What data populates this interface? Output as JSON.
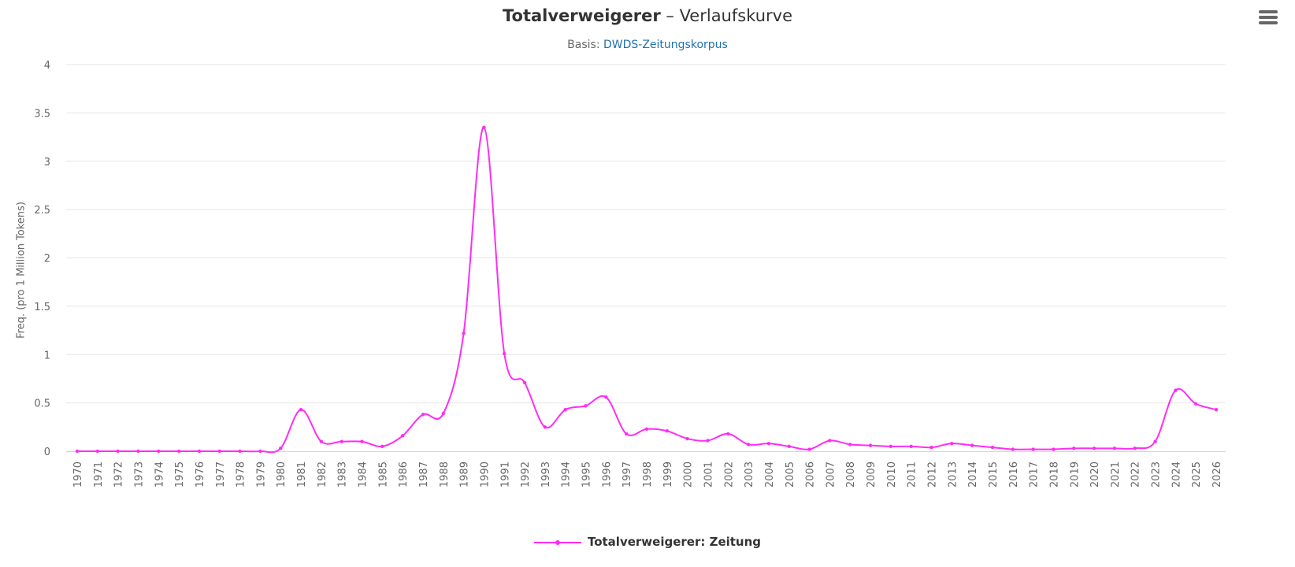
{
  "title": {
    "term": "Totalverweigerer",
    "rest": " – Verlaufskurve"
  },
  "subtitle": {
    "prefix": "Basis: ",
    "link": "DWDS-Zeitungskorpus"
  },
  "menu": {
    "icon": "hamburger-menu-icon"
  },
  "colors": {
    "series": "#ff2cf5",
    "grid": "#e6e6e6",
    "axis": "#ccd6eb",
    "text": "#666666"
  },
  "chart_data": {
    "type": "line",
    "ylabel": "Freq. (pro 1 Million Tokens)",
    "ylim": [
      0,
      4
    ],
    "yticks": [
      0,
      0.5,
      1,
      1.5,
      2,
      2.5,
      3,
      3.5,
      4
    ],
    "grid": true,
    "legend_position": "bottom-center",
    "x": [
      1970,
      1971,
      1972,
      1973,
      1974,
      1975,
      1976,
      1977,
      1978,
      1979,
      1980,
      1981,
      1982,
      1983,
      1984,
      1985,
      1986,
      1987,
      1988,
      1989,
      1990,
      1991,
      1992,
      1993,
      1994,
      1995,
      1996,
      1997,
      1998,
      1999,
      2000,
      2001,
      2002,
      2003,
      2004,
      2005,
      2006,
      2007,
      2008,
      2009,
      2010,
      2011,
      2012,
      2013,
      2014,
      2015,
      2016,
      2017,
      2018,
      2019,
      2020,
      2021,
      2022,
      2023,
      2024,
      2025,
      2026
    ],
    "series": [
      {
        "name": "Totalverweigerer: Zeitung",
        "values": [
          0.0,
          0.0,
          0.0,
          0.0,
          0.0,
          0.0,
          0.0,
          0.0,
          0.0,
          0.0,
          0.03,
          0.43,
          0.1,
          0.1,
          0.1,
          0.05,
          0.16,
          0.38,
          0.39,
          1.22,
          3.35,
          1.01,
          0.71,
          0.25,
          0.43,
          0.47,
          0.56,
          0.18,
          0.23,
          0.21,
          0.13,
          0.11,
          0.18,
          0.07,
          0.08,
          0.05,
          0.02,
          0.11,
          0.07,
          0.06,
          0.05,
          0.05,
          0.04,
          0.08,
          0.06,
          0.04,
          0.02,
          0.02,
          0.02,
          0.03,
          0.03,
          0.03,
          0.03,
          0.1,
          0.63,
          0.49,
          0.43
        ]
      }
    ]
  }
}
